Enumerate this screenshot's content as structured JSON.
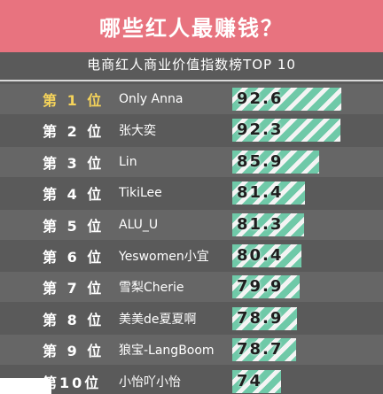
{
  "header": {
    "title": "哪些红人最赚钱？"
  },
  "chart_data": {
    "type": "bar",
    "title": "电商红人商业价值指数榜TOP 10",
    "categories": [
      "Only Anna",
      "张大奕",
      "Lin",
      "TikiLee",
      "ALU_U",
      "Yeswomen小宜",
      "雪梨Cherie",
      "美美de夏夏啊",
      "狼宝-LangBoom",
      "小怡吖小怡"
    ],
    "ranks": [
      "第 1 位",
      "第 2 位",
      "第 3 位",
      "第 4 位",
      "第 5 位",
      "第 6 位",
      "第 7 位",
      "第 8 位",
      "第 9 位",
      "第10位"
    ],
    "values": [
      92.6,
      92.3,
      85.9,
      81.4,
      81.3,
      80.4,
      79.9,
      78.9,
      78.7,
      74
    ],
    "value_labels": [
      "92.6",
      "92.3",
      "85.9",
      "81.4",
      "81.3",
      "80.4",
      "79.9",
      "78.9",
      "78.7",
      "74"
    ],
    "xlim": [
      0,
      100
    ],
    "colors": {
      "bar": "#6fc9a8",
      "stripe": "#f4f4f4",
      "top_rank": "#f5d35a",
      "header": "#e8737f"
    }
  }
}
